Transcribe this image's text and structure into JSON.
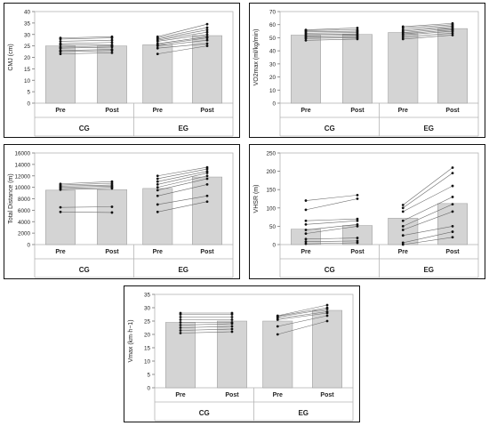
{
  "chart_data": [
    {
      "type": "bar",
      "ylabel": "CMJ (cm)",
      "ylim": [
        0,
        40
      ],
      "yticks": [
        0,
        5,
        10,
        15,
        20,
        25,
        30,
        35,
        40
      ],
      "timepoints": [
        "Pre",
        "Post"
      ],
      "groups": [
        "CG",
        "EG"
      ],
      "series": [
        {
          "name": "CG",
          "means": [
            25,
            25
          ],
          "individuals": [
            [
              21.5,
              22
            ],
            [
              22.5,
              23
            ],
            [
              23,
              23.5
            ],
            [
              24,
              24.5
            ],
            [
              24.5,
              25
            ],
            [
              25.5,
              25.5
            ],
            [
              26,
              26.5
            ],
            [
              27,
              27.5
            ],
            [
              28,
              28.5
            ],
            [
              28.5,
              29
            ]
          ]
        },
        {
          "name": "EG",
          "means": [
            25.5,
            29.5
          ],
          "individuals": [
            [
              21.5,
              25
            ],
            [
              24,
              26
            ],
            [
              25,
              27.5
            ],
            [
              25.5,
              28.5
            ],
            [
              26,
              29
            ],
            [
              27,
              30
            ],
            [
              27.5,
              31
            ],
            [
              28,
              32
            ],
            [
              28.5,
              33
            ],
            [
              29,
              34.5
            ]
          ]
        }
      ]
    },
    {
      "type": "bar",
      "ylabel": "VO2max (ml/kg/min)",
      "ylim": [
        0,
        70
      ],
      "yticks": [
        0,
        10,
        20,
        30,
        40,
        50,
        60,
        70
      ],
      "timepoints": [
        "Pre",
        "Post"
      ],
      "groups": [
        "CG",
        "EG"
      ],
      "series": [
        {
          "name": "CG",
          "means": [
            52,
            52.5
          ],
          "individuals": [
            [
              48,
              49
            ],
            [
              49.5,
              50
            ],
            [
              50.5,
              51
            ],
            [
              51.5,
              52
            ],
            [
              52.5,
              53
            ],
            [
              53.5,
              54
            ],
            [
              54.5,
              55
            ],
            [
              55.5,
              56
            ],
            [
              56,
              57.5
            ]
          ]
        },
        {
          "name": "EG",
          "means": [
            54,
            57
          ],
          "individuals": [
            [
              49,
              52
            ],
            [
              50.5,
              53.5
            ],
            [
              52,
              55
            ],
            [
              53,
              56
            ],
            [
              54,
              57
            ],
            [
              55,
              58
            ],
            [
              56,
              59
            ],
            [
              57.5,
              60
            ],
            [
              58.5,
              61
            ]
          ]
        }
      ]
    },
    {
      "type": "bar",
      "ylabel": "Total Distance (m)",
      "ylim": [
        0,
        16000
      ],
      "yticks": [
        0,
        2000,
        4000,
        6000,
        8000,
        10000,
        12000,
        14000,
        16000
      ],
      "timepoints": [
        "Pre",
        "Post"
      ],
      "groups": [
        "CG",
        "EG"
      ],
      "series": [
        {
          "name": "CG",
          "means": [
            9500,
            9600
          ],
          "individuals": [
            [
              5700,
              5600
            ],
            [
              6500,
              6600
            ],
            [
              9600,
              9800
            ],
            [
              9800,
              10000
            ],
            [
              10000,
              10200
            ],
            [
              10200,
              10400
            ],
            [
              10400,
              10700
            ],
            [
              10600,
              11000
            ]
          ]
        },
        {
          "name": "EG",
          "means": [
            9800,
            11800
          ],
          "individuals": [
            [
              5700,
              7500
            ],
            [
              7000,
              8500
            ],
            [
              8500,
              10500
            ],
            [
              9500,
              11500
            ],
            [
              10000,
              12000
            ],
            [
              10500,
              12500
            ],
            [
              11000,
              12800
            ],
            [
              11500,
              13200
            ],
            [
              12000,
              13500
            ]
          ]
        }
      ]
    },
    {
      "type": "bar",
      "ylabel": "VHSR (m)",
      "ylim": [
        0,
        250
      ],
      "yticks": [
        0,
        50,
        100,
        150,
        200,
        250
      ],
      "timepoints": [
        "Pre",
        "Post"
      ],
      "groups": [
        "CG",
        "EG"
      ],
      "series": [
        {
          "name": "CG",
          "means": [
            42,
            52
          ],
          "individuals": [
            [
              2,
              5
            ],
            [
              8,
              10
            ],
            [
              15,
              18
            ],
            [
              30,
              50
            ],
            [
              40,
              55
            ],
            [
              55,
              65
            ],
            [
              65,
              70
            ],
            [
              95,
              125
            ],
            [
              120,
              135
            ]
          ]
        },
        {
          "name": "EG",
          "means": [
            72,
            112
          ],
          "individuals": [
            [
              0,
              20
            ],
            [
              5,
              35
            ],
            [
              25,
              50
            ],
            [
              40,
              90
            ],
            [
              50,
              110
            ],
            [
              65,
              130
            ],
            [
              90,
              160
            ],
            [
              100,
              195
            ],
            [
              108,
              210
            ]
          ]
        }
      ]
    },
    {
      "type": "bar",
      "ylabel": "Vmax (km·h−1)",
      "ylim": [
        0,
        35
      ],
      "yticks": [
        0,
        5,
        10,
        15,
        20,
        25,
        30,
        35
      ],
      "timepoints": [
        "Pre",
        "Post"
      ],
      "groups": [
        "CG",
        "EG"
      ],
      "series": [
        {
          "name": "CG",
          "means": [
            24.5,
            25
          ],
          "individuals": [
            [
              20.5,
              21
            ],
            [
              21.5,
              22
            ],
            [
              22.5,
              23
            ],
            [
              23.5,
              24
            ],
            [
              24.5,
              24.5
            ],
            [
              25.5,
              25.5
            ],
            [
              26.5,
              26.5
            ],
            [
              27.5,
              27.5
            ],
            [
              28,
              28
            ]
          ]
        },
        {
          "name": "EG",
          "means": [
            25,
            29
          ],
          "individuals": [
            [
              20,
              25
            ],
            [
              23,
              27
            ],
            [
              25.5,
              28
            ],
            [
              26,
              28.5
            ],
            [
              26.5,
              29.5
            ],
            [
              26.8,
              30
            ],
            [
              27,
              31
            ]
          ]
        }
      ]
    }
  ]
}
